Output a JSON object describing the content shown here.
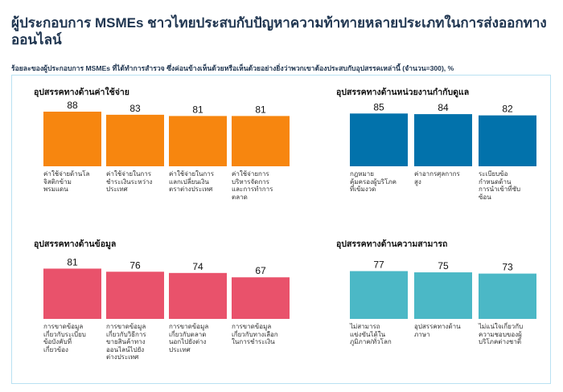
{
  "header": {
    "title": "ผู้ประกอบการ MSMEs ชาวไทยประสบกับปัญหาความท้าทายหลายประเภทในการส่งออกทางออนไลน์",
    "subtitle": "ร้อยละของผู้ประกอบการ MSMEs ที่ได้ทำการสำรวจ ซึ่งค่อนข้างเห็นด้วยหรือเห็นด้วยอย่างยิ่งว่าพวกเขาต้องประสบกับอุปสรรคเหล่านี้ (จำนวน=300), %"
  },
  "chart_data": [
    {
      "type": "bar",
      "title": "อุปสรรคทางด้านค่าใช้จ่าย",
      "color": "#f7860f",
      "ylim": [
        0,
        100
      ],
      "categories": [
        "ค่าใช้จ่ายด้านโลจิสติกข้ามพรมแดน",
        "ค่าใช้จ่ายในการชำระเงินระหว่างประเทศ",
        "ค่าใช้จ่ายในการแลกเปลี่ยนเงินตราต่างประเทศ",
        "ค่าใช้จ่ายการบริหารจัดการและการทำการตลาด"
      ],
      "values": [
        88,
        83,
        81,
        81
      ]
    },
    {
      "type": "bar",
      "title": "อุปสรรคทางด้านหน่วยงานกำกับดูแล",
      "color": "#0272ab",
      "ylim": [
        0,
        100
      ],
      "categories": [
        "กฎหมายคุ้มครองผู้บริโภคที่เข้มงวด",
        "ค่าอากรศุลกากรสูง",
        "ระเบียบข้อกำหนดด้านการนำเข้าที่ซับซ้อน"
      ],
      "values": [
        85,
        84,
        82
      ]
    },
    {
      "type": "bar",
      "title": "อุปสรรคทางด้านข้อมูล",
      "color": "#e9526b",
      "ylim": [
        0,
        100
      ],
      "categories": [
        "การขาดข้อมูลเกี่ยวกับระเบียบข้อบังคับที่เกี่ยวข้อง",
        "การขาดข้อมูลเกี่ยวกับวิธีการขายสินค้าทางออนไลน์ไปยังต่างประเทศ",
        "การขาดข้อมูลเกี่ยวกับตลาดนอกไปยังต่างประเทศ",
        "การขาดข้อมูลเกี่ยวกับทางเลือกในการชำระเงิน"
      ],
      "values": [
        81,
        76,
        74,
        67
      ]
    },
    {
      "type": "bar",
      "title": "อุปสรรคทางด้านความสามารถ",
      "color": "#4bb8c6",
      "ylim": [
        0,
        100
      ],
      "categories": [
        "ไม่สามารถแข่งขันได้ในภูมิภาค/ทั่วโลก",
        "อุปสรรคทางด้านภาษา",
        "ไม่แน่ใจเกี่ยวกับความชอบของผู้บริโภคต่างชาติ"
      ],
      "values": [
        77,
        75,
        73
      ]
    }
  ]
}
